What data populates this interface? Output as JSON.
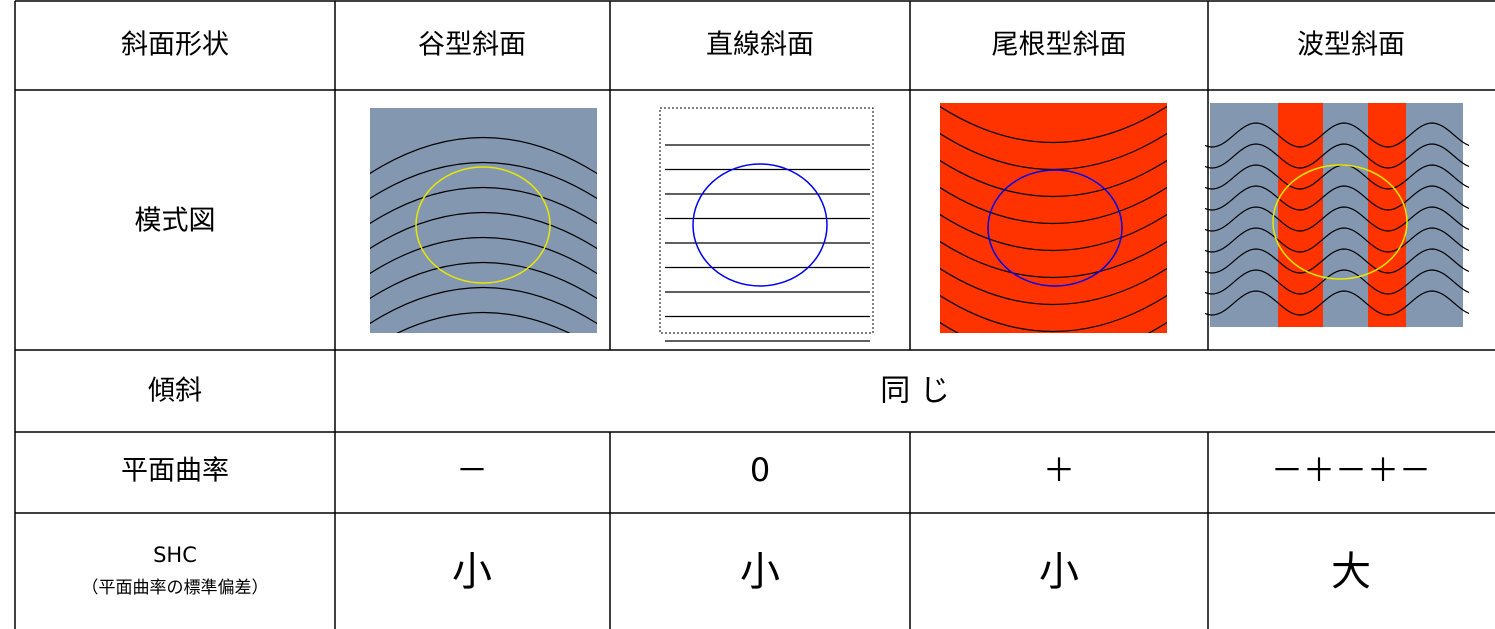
{
  "table": {
    "header": [
      "斜面形状",
      "谷型斜面",
      "直線斜面",
      "尾根型斜面",
      "波型斜面"
    ],
    "rows": [
      {
        "label": "模式図"
      },
      {
        "label": "傾斜",
        "cells": [
          "同 じ"
        ]
      },
      {
        "label": "平面曲率",
        "cells": [
          "－",
          "0",
          "＋",
          "－＋－＋－"
        ]
      },
      {
        "label": "SHC",
        "sublabel": "（平面曲率の標準偏差）",
        "cells": [
          "小",
          "小",
          "小",
          "大"
        ]
      }
    ]
  }
}
